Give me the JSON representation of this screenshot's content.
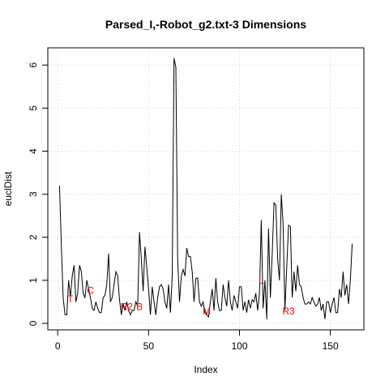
{
  "chart_data": {
    "type": "line",
    "title": "Parsed_I,-Robot_g2.txt-3 Dimensions",
    "x_label": "Index",
    "y_label": "euclDist",
    "x": [
      1,
      2,
      3,
      4,
      5,
      6,
      7,
      8,
      9,
      10,
      11,
      12,
      13,
      14,
      15,
      16,
      17,
      18,
      19,
      20,
      21,
      22,
      23,
      24,
      25,
      26,
      27,
      28,
      29,
      30,
      31,
      32,
      33,
      34,
      35,
      36,
      37,
      38,
      39,
      40,
      41,
      42,
      43,
      44,
      45,
      46,
      47,
      48,
      49,
      50,
      51,
      52,
      53,
      54,
      55,
      56,
      57,
      58,
      59,
      60,
      61,
      62,
      63,
      64,
      65,
      66,
      67,
      68,
      69,
      70,
      71,
      72,
      73,
      74,
      75,
      76,
      77,
      78,
      79,
      80,
      81,
      82,
      83,
      84,
      85,
      86,
      87,
      88,
      89,
      90,
      91,
      92,
      93,
      94,
      95,
      96,
      97,
      98,
      99,
      100,
      101,
      102,
      103,
      104,
      105,
      106,
      107,
      108,
      109,
      110,
      111,
      112,
      113,
      114,
      115,
      116,
      117,
      118,
      119,
      120,
      121,
      122,
      123,
      124,
      125,
      126,
      127,
      128,
      129,
      130,
      131,
      132,
      133,
      134,
      135,
      136,
      137,
      138,
      139,
      140,
      141,
      142,
      143,
      144,
      145,
      146,
      147,
      148,
      149,
      150,
      151,
      152,
      153,
      154,
      155,
      156,
      157,
      158,
      159,
      160,
      161,
      162
    ],
    "values": [
      3.2,
      1.8,
      0.6,
      0.2,
      0.2,
      1.0,
      0.6,
      1.1,
      1.35,
      0.5,
      0.7,
      1.35,
      1.2,
      0.7,
      0.6,
      1.0,
      0.8,
      0.6,
      0.35,
      0.3,
      0.5,
      0.35,
      0.25,
      0.25,
      0.6,
      0.65,
      0.9,
      1.62,
      0.5,
      0.6,
      0.9,
      1.2,
      1.1,
      0.55,
      0.2,
      0.45,
      0.3,
      0.5,
      0.3,
      0.2,
      0.3,
      0.3,
      0.5,
      0.4,
      2.12,
      1.5,
      0.75,
      1.78,
      1.3,
      0.8,
      0.2,
      0.85,
      0.5,
      0.2,
      0.6,
      0.85,
      0.9,
      0.8,
      0.5,
      0.35,
      0.9,
      0.25,
      1.1,
      6.16,
      5.95,
      1.5,
      0.5,
      1.1,
      1.25,
      1.1,
      1.75,
      1.55,
      1.55,
      1.2,
      0.5,
      1.05,
      1.05,
      0.5,
      0.4,
      0.5,
      0.25,
      0.2,
      0.15,
      0.5,
      0.8,
      0.3,
      1.05,
      0.5,
      0.3,
      0.3,
      0.9,
      0.6,
      0.4,
      1.0,
      0.5,
      0.3,
      0.65,
      0.5,
      0.35,
      0.85,
      0.85,
      0.3,
      0.5,
      0.25,
      0.55,
      0.35,
      0.55,
      0.5,
      0.7,
      0.3,
      0.7,
      2.4,
      0.35,
      1.0,
      0.1,
      2.2,
      0.6,
      1.6,
      2.8,
      2.75,
      1.5,
      1.0,
      3.0,
      2.3,
      0.3,
      1.3,
      2.28,
      2.25,
      0.6,
      1.2,
      0.75,
      1.35,
      0.9,
      0.85,
      0.6,
      0.45,
      0.45,
      0.5,
      0.45,
      0.6,
      0.5,
      0.4,
      0.45,
      0.6,
      0.3,
      0.45,
      0.1,
      0.5,
      0.5,
      0.25,
      0.45,
      0.6,
      0.25,
      0.25,
      0.8,
      0.6,
      1.2,
      0.65,
      0.9,
      0.45,
      1.0,
      1.85
    ],
    "color": "#000000",
    "annotation_color": "#ff0000",
    "annotations": [
      {
        "text": "T",
        "x": 7,
        "y": 0.55
      },
      {
        "text": "C",
        "x": 18,
        "y": 0.75
      },
      {
        "text": "R2",
        "x": 38,
        "y": 0.37
      },
      {
        "text": "B",
        "x": 45,
        "y": 0.37
      },
      {
        "text": "M",
        "x": 82,
        "y": 0.27
      },
      {
        "text": "L",
        "x": 112,
        "y": 0.98
      },
      {
        "text": "R3",
        "x": 127,
        "y": 0.27
      }
    ],
    "xlim": [
      -5.44,
      168.44
    ],
    "ylim": [
      -0.15,
      6.4
    ],
    "xticks": [
      0,
      50,
      100,
      150
    ],
    "yticks": [
      0,
      1,
      2,
      3,
      4,
      5,
      6
    ],
    "grid": true
  }
}
